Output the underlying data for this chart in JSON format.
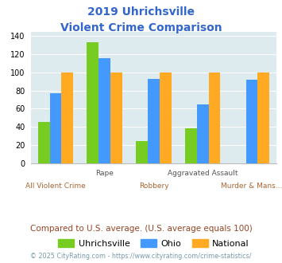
{
  "title_line1": "2019 Uhrichsville",
  "title_line2": "Violent Crime Comparison",
  "categories": [
    "All Violent Crime",
    "Rape",
    "Robbery",
    "Aggravated Assault",
    "Murder & Mans..."
  ],
  "series": {
    "Uhrichsville": [
      45,
      133,
      24,
      38,
      0
    ],
    "Ohio": [
      77,
      116,
      93,
      65,
      92
    ],
    "National": [
      100,
      100,
      100,
      100,
      100
    ]
  },
  "colors": {
    "Uhrichsville": "#77cc22",
    "Ohio": "#4499ff",
    "National": "#ffaa22"
  },
  "ylim": [
    0,
    145
  ],
  "yticks": [
    0,
    20,
    40,
    60,
    80,
    100,
    120,
    140
  ],
  "note": "Compared to U.S. average. (U.S. average equals 100)",
  "footer": "© 2025 CityRating.com - https://www.cityrating.com/crime-statistics/",
  "title_color": "#3366cc",
  "note_color": "#994422",
  "footer_color": "#7799aa",
  "plot_bg": "#ddeaee"
}
